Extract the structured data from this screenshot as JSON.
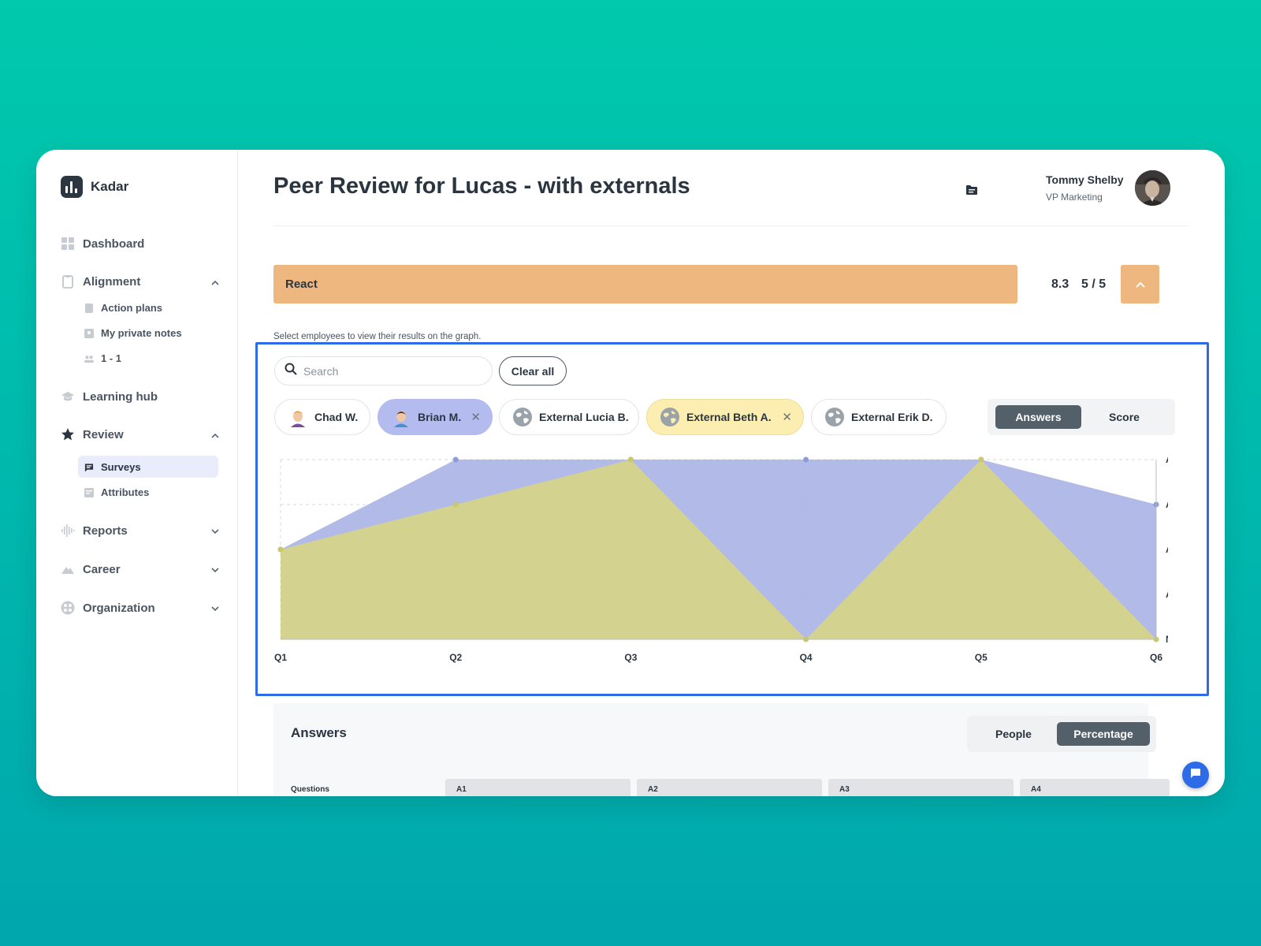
{
  "app": {
    "name": "Kadar"
  },
  "sidebar": {
    "items": [
      {
        "label": "Dashboard",
        "icon": "dashboard-icon"
      },
      {
        "label": "Alignment",
        "icon": "clipboard-icon",
        "expanded": true,
        "children": [
          {
            "label": "Action plans",
            "icon": "list-icon"
          },
          {
            "label": "My private notes",
            "icon": "note-icon"
          },
          {
            "label": "1 - 1",
            "icon": "people-icon"
          }
        ]
      },
      {
        "label": "Learning hub",
        "icon": "graduation-cap-icon"
      },
      {
        "label": "Review",
        "icon": "star-icon",
        "expanded": true,
        "children": [
          {
            "label": "Surveys",
            "icon": "chat-icon",
            "active": true
          },
          {
            "label": "Attributes",
            "icon": "attributes-icon"
          }
        ]
      },
      {
        "label": "Reports",
        "icon": "waveform-icon",
        "expanded": false
      },
      {
        "label": "Career",
        "icon": "mountain-icon",
        "expanded": false
      },
      {
        "label": "Organization",
        "icon": "org-icon",
        "expanded": false
      }
    ]
  },
  "header": {
    "title": "Peer Review for Lucas - with externals",
    "user_name": "Tommy Shelby",
    "user_role": "VP Marketing"
  },
  "section": {
    "name": "React",
    "score": "8.3",
    "ratio": "5 / 5",
    "color": "#edb77f"
  },
  "filter": {
    "hint": "Select employees to view their results on the graph.",
    "search_placeholder": "Search",
    "clear_label": "Clear all",
    "people": [
      {
        "name": "Chad W.",
        "selected": false,
        "external": false
      },
      {
        "name": "Brian M.",
        "selected": true,
        "external": false,
        "color": "#b4bcef"
      },
      {
        "name": "External Lucia B.",
        "selected": false,
        "external": true
      },
      {
        "name": "External Beth A.",
        "selected": true,
        "external": true,
        "color": "#fbeeb0"
      },
      {
        "name": "External Erik D.",
        "selected": false,
        "external": true
      }
    ],
    "view_toggle": {
      "options": [
        "Answers",
        "Score"
      ],
      "selected": "Answers"
    }
  },
  "chart_data": {
    "type": "area",
    "categories": [
      "Q1",
      "Q2",
      "Q3",
      "Q4",
      "Q5",
      "Q6"
    ],
    "y_levels": [
      "N/A",
      "A1",
      "A2",
      "A3",
      "A4"
    ],
    "series": [
      {
        "person": "Brian M.",
        "values": [
          2,
          4,
          4,
          4,
          4,
          3
        ],
        "color": "#aab4e6"
      },
      {
        "person": "External Beth A.",
        "values": [
          2,
          3,
          4,
          0,
          4,
          0
        ],
        "color": "#d5d48a"
      }
    ],
    "grid": true
  },
  "answers": {
    "title": "Answers",
    "toggle": {
      "options": [
        "People",
        "Percentage"
      ],
      "selected": "Percentage"
    },
    "columns": [
      "Questions",
      "A1",
      "A2",
      "A3",
      "A4"
    ]
  },
  "colors": {
    "accent": "#2e6be6",
    "dark": "#2a3540"
  }
}
